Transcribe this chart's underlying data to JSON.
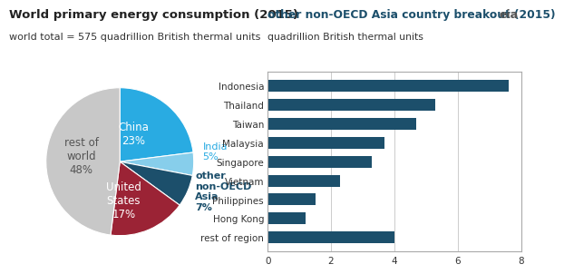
{
  "pie_values": [
    23,
    5,
    7,
    17,
    48
  ],
  "pie_colors": [
    "#29ABE2",
    "#87CEEB",
    "#1C4F6B",
    "#9B2335",
    "#C8C8C8"
  ],
  "pie_title": "World primary energy consumption (2015)",
  "pie_subtitle": "world total = 575 quadrillion British thermal units",
  "bar_categories": [
    "Indonesia",
    "Thailand",
    "Taiwan",
    "Malaysia",
    "Singapore",
    "Vietnam",
    "Philippines",
    "Hong Kong",
    "rest of region"
  ],
  "bar_values": [
    7.6,
    5.3,
    4.7,
    3.7,
    3.3,
    2.3,
    1.5,
    1.2,
    4.0
  ],
  "bar_color": "#1C4F6B",
  "bar_title": "other non-OECD Asia country breakout (2015)",
  "bar_subtitle": "quadrillion British thermal units",
  "bar_xlim": [
    0,
    8
  ],
  "bar_xticks": [
    0,
    2,
    4,
    6,
    8
  ],
  "background_color": "#FFFFFF"
}
